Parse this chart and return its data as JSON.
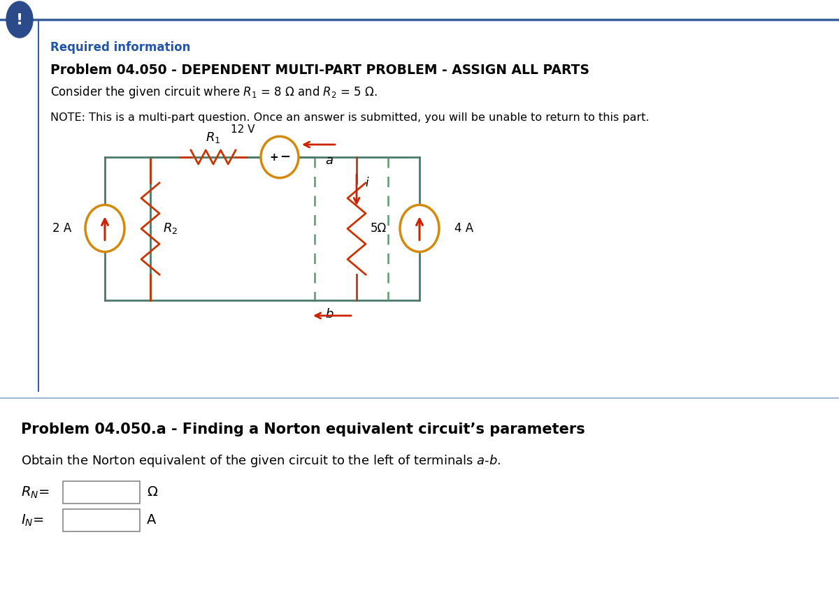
{
  "bg_color": "#ffffff",
  "top_bar_color": "#3a5f9f",
  "warning_icon_bg": "#2a4a8a",
  "required_info_color": "#2255aa",
  "title_text": "Problem 04.050 - DEPENDENT MULTI-PART PROBLEM - ASSIGN ALL PARTS",
  "consider_text_pre": "Consider the given circuit where ",
  "consider_text_post": " = 8 Ω and ",
  "consider_text_end": " = 5 Ω.",
  "note_text": "NOTE: This is a multi-part question. Once an answer is submitted, you will be unable to return to this part.",
  "circuit_wire_color": "#4a7a6a",
  "source_border_color": "#d4890a",
  "resistor_color": "#cc3300",
  "arrow_color": "#cc2200",
  "dashed_color": "#5a9a6a",
  "part_a_title": "Problem 04.050.a - Finding a Norton equivalent circuit’s parameters",
  "obtain_text": "Obtain the Norton equivalent of the given circuit to the left of terminals ",
  "sep_line_color": "#8aaacc"
}
